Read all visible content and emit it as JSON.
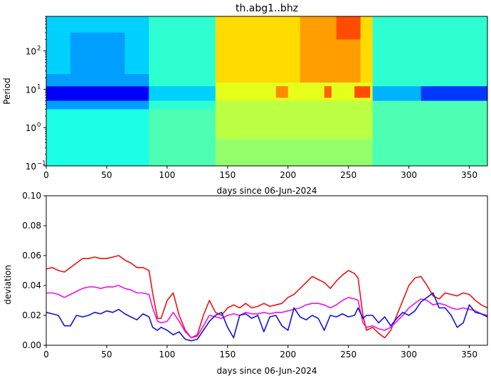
{
  "figure_title": "th.abg1..bhz",
  "chart_data": [
    {
      "type": "heatmap",
      "title": "th.abg1..bhz",
      "xlabel": "days since 06-Jun-2024",
      "ylabel": "Period",
      "xlim": [
        0,
        365
      ],
      "ylim": [
        0.1,
        800
      ],
      "yscale": "log",
      "xticks": [
        "0",
        "50",
        "100",
        "150",
        "200",
        "250",
        "300",
        "350"
      ],
      "yticks": [
        {
          "base": "10",
          "exp": "−1"
        },
        {
          "base": "10",
          "exp": "0"
        },
        {
          "base": "10",
          "exp": "1"
        },
        {
          "base": "10",
          "exp": "2"
        }
      ],
      "colormap": "jet",
      "cells": [
        {
          "x0": 0,
          "x1": 85,
          "y0": 0.1,
          "y1": 3,
          "value": 0.4
        },
        {
          "x0": 0,
          "x1": 85,
          "y0": 3,
          "y1": 5,
          "value": 0.28
        },
        {
          "x0": 0,
          "x1": 85,
          "y0": 5,
          "y1": 12,
          "value": 0.12
        },
        {
          "x0": 0,
          "x1": 85,
          "y0": 12,
          "y1": 25,
          "value": 0.28
        },
        {
          "x0": 0,
          "x1": 85,
          "y0": 25,
          "y1": 800,
          "value": 0.33
        },
        {
          "x0": 20,
          "x1": 65,
          "y0": 25,
          "y1": 300,
          "value": 0.28
        },
        {
          "x0": 85,
          "x1": 140,
          "y0": 0.1,
          "y1": 3,
          "value": 0.45
        },
        {
          "x0": 85,
          "x1": 140,
          "y0": 3,
          "y1": 800,
          "value": 0.42
        },
        {
          "x0": 85,
          "x1": 140,
          "y0": 5,
          "y1": 12,
          "value": 0.33
        },
        {
          "x0": 140,
          "x1": 270,
          "y0": 0.1,
          "y1": 0.5,
          "value": 0.52
        },
        {
          "x0": 140,
          "x1": 270,
          "y0": 0.5,
          "y1": 5,
          "value": 0.56
        },
        {
          "x0": 140,
          "x1": 270,
          "y0": 5,
          "y1": 15,
          "value": 0.6
        },
        {
          "x0": 140,
          "x1": 270,
          "y0": 15,
          "y1": 800,
          "value": 0.66
        },
        {
          "x0": 210,
          "x1": 260,
          "y0": 15,
          "y1": 800,
          "value": 0.72
        },
        {
          "x0": 240,
          "x1": 260,
          "y0": 200,
          "y1": 800,
          "value": 0.8
        },
        {
          "x0": 190,
          "x1": 200,
          "y0": 6,
          "y1": 12,
          "value": 0.74
        },
        {
          "x0": 230,
          "x1": 236,
          "y0": 6,
          "y1": 12,
          "value": 0.78
        },
        {
          "x0": 255,
          "x1": 268,
          "y0": 6,
          "y1": 12,
          "value": 0.8
        },
        {
          "x0": 270,
          "x1": 365,
          "y0": 0.1,
          "y1": 5,
          "value": 0.45
        },
        {
          "x0": 270,
          "x1": 365,
          "y0": 5,
          "y1": 12,
          "value": 0.3
        },
        {
          "x0": 270,
          "x1": 365,
          "y0": 12,
          "y1": 800,
          "value": 0.42
        },
        {
          "x0": 310,
          "x1": 365,
          "y0": 5,
          "y1": 12,
          "value": 0.18
        }
      ]
    },
    {
      "type": "line",
      "xlabel": "days since 06-Jun-2024",
      "ylabel": "deviation",
      "xlim": [
        0,
        365
      ],
      "ylim": [
        0,
        0.1
      ],
      "xticks": [
        "0",
        "50",
        "100",
        "150",
        "200",
        "250",
        "300",
        "350"
      ],
      "yticks": [
        "0.00",
        "0.02",
        "0.04",
        "0.06",
        "0.08",
        "0.10"
      ],
      "grid": false,
      "series": [
        {
          "color": "#ee1111",
          "x": [
            0,
            5,
            10,
            15,
            20,
            25,
            30,
            35,
            40,
            45,
            50,
            55,
            60,
            65,
            70,
            75,
            80,
            85,
            88,
            92,
            95,
            100,
            105,
            110,
            115,
            120,
            125,
            130,
            135,
            140,
            145,
            150,
            155,
            160,
            165,
            170,
            175,
            180,
            185,
            190,
            195,
            200,
            205,
            210,
            215,
            220,
            225,
            230,
            235,
            240,
            245,
            250,
            255,
            258,
            262,
            265,
            270,
            275,
            280,
            285,
            290,
            295,
            300,
            305,
            310,
            315,
            320,
            325,
            330,
            335,
            340,
            345,
            350,
            355,
            360,
            365
          ],
          "values": [
            0.051,
            0.052,
            0.05,
            0.049,
            0.052,
            0.055,
            0.058,
            0.058,
            0.059,
            0.058,
            0.058,
            0.059,
            0.06,
            0.057,
            0.055,
            0.052,
            0.052,
            0.05,
            0.035,
            0.018,
            0.018,
            0.03,
            0.035,
            0.02,
            0.01,
            0.005,
            0.007,
            0.02,
            0.03,
            0.022,
            0.02,
            0.025,
            0.027,
            0.025,
            0.028,
            0.025,
            0.026,
            0.028,
            0.026,
            0.027,
            0.028,
            0.032,
            0.034,
            0.038,
            0.042,
            0.046,
            0.044,
            0.042,
            0.038,
            0.043,
            0.047,
            0.05,
            0.048,
            0.045,
            0.02,
            0.01,
            0.012,
            0.008,
            0.005,
            0.01,
            0.02,
            0.03,
            0.04,
            0.045,
            0.046,
            0.04,
            0.033,
            0.031,
            0.035,
            0.034,
            0.033,
            0.035,
            0.034,
            0.03,
            0.027,
            0.025
          ]
        },
        {
          "color": "#ee11ee",
          "x": [
            0,
            5,
            10,
            15,
            20,
            25,
            30,
            35,
            40,
            45,
            50,
            55,
            60,
            65,
            70,
            75,
            80,
            85,
            88,
            92,
            95,
            100,
            105,
            110,
            115,
            120,
            125,
            130,
            135,
            140,
            145,
            150,
            155,
            160,
            165,
            170,
            175,
            180,
            185,
            190,
            195,
            200,
            205,
            210,
            215,
            220,
            225,
            230,
            235,
            240,
            245,
            250,
            255,
            258,
            262,
            265,
            270,
            275,
            280,
            285,
            290,
            295,
            300,
            305,
            310,
            315,
            320,
            325,
            330,
            335,
            340,
            345,
            350,
            355,
            360,
            365
          ],
          "values": [
            0.035,
            0.035,
            0.034,
            0.032,
            0.034,
            0.036,
            0.038,
            0.039,
            0.039,
            0.038,
            0.039,
            0.039,
            0.04,
            0.038,
            0.037,
            0.035,
            0.035,
            0.034,
            0.025,
            0.016,
            0.015,
            0.016,
            0.022,
            0.016,
            0.009,
            0.005,
            0.006,
            0.013,
            0.02,
            0.019,
            0.018,
            0.02,
            0.021,
            0.02,
            0.022,
            0.021,
            0.021,
            0.022,
            0.021,
            0.022,
            0.022,
            0.023,
            0.024,
            0.025,
            0.027,
            0.028,
            0.028,
            0.027,
            0.025,
            0.027,
            0.03,
            0.032,
            0.031,
            0.03,
            0.015,
            0.012,
            0.013,
            0.011,
            0.01,
            0.012,
            0.016,
            0.02,
            0.025,
            0.028,
            0.031,
            0.03,
            0.027,
            0.028,
            0.027,
            0.025,
            0.024,
            0.025,
            0.024,
            0.023,
            0.021,
            0.02
          ]
        },
        {
          "color": "#1111dd",
          "x": [
            0,
            5,
            10,
            15,
            20,
            25,
            30,
            35,
            40,
            45,
            50,
            55,
            60,
            65,
            70,
            75,
            80,
            85,
            88,
            92,
            95,
            100,
            105,
            110,
            115,
            120,
            125,
            130,
            135,
            140,
            145,
            150,
            155,
            160,
            165,
            170,
            175,
            180,
            185,
            190,
            195,
            200,
            205,
            210,
            215,
            220,
            225,
            230,
            235,
            240,
            245,
            250,
            255,
            258,
            262,
            265,
            270,
            275,
            280,
            285,
            290,
            295,
            300,
            305,
            310,
            315,
            320,
            325,
            330,
            335,
            340,
            345,
            350,
            355,
            360,
            365
          ],
          "values": [
            0.022,
            0.021,
            0.02,
            0.013,
            0.013,
            0.02,
            0.019,
            0.02,
            0.022,
            0.021,
            0.023,
            0.022,
            0.024,
            0.021,
            0.019,
            0.017,
            0.021,
            0.019,
            0.012,
            0.01,
            0.012,
            0.01,
            0.007,
            0.009,
            0.004,
            0.003,
            0.004,
            0.01,
            0.016,
            0.02,
            0.022,
            0.012,
            0.005,
            0.02,
            0.021,
            0.018,
            0.02,
            0.009,
            0.019,
            0.02,
            0.013,
            0.01,
            0.025,
            0.019,
            0.017,
            0.02,
            0.018,
            0.01,
            0.02,
            0.019,
            0.021,
            0.019,
            0.02,
            0.025,
            0.018,
            0.02,
            0.02,
            0.015,
            0.019,
            0.013,
            0.018,
            0.022,
            0.02,
            0.023,
            0.029,
            0.032,
            0.035,
            0.025,
            0.025,
            0.02,
            0.012,
            0.015,
            0.027,
            0.022,
            0.021,
            0.019
          ]
        }
      ]
    }
  ]
}
